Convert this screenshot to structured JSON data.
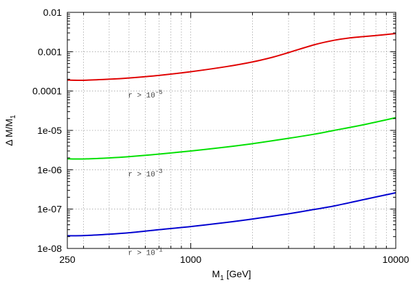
{
  "chart_data": {
    "type": "line",
    "xlabel": {
      "base": "M",
      "sub": "1",
      "rest": " [GeV]"
    },
    "ylabel": {
      "pre": "Δ M/M",
      "sub": "1"
    },
    "x_scale": "log",
    "y_scale": "log",
    "xlim": [
      250,
      10000
    ],
    "ylim": [
      1e-08,
      0.01
    ],
    "x_tick_labels": [
      {
        "value": 250,
        "label": "250"
      },
      {
        "value": 1000,
        "label": "1000"
      },
      {
        "value": 10000,
        "label": "10000"
      }
    ],
    "y_tick_labels": [
      {
        "value": 1e-08,
        "label": "1e-08"
      },
      {
        "value": 1e-07,
        "label": "1e-07"
      },
      {
        "value": 1e-06,
        "label": "1e-06"
      },
      {
        "value": 1e-05,
        "label": "1e-05"
      },
      {
        "value": 0.0001,
        "label": "0.0001"
      },
      {
        "value": 0.001,
        "label": "0.001"
      },
      {
        "value": 0.01,
        "label": "0.01"
      }
    ],
    "grid": true,
    "series": [
      {
        "color": "#e00000",
        "annotation": {
          "text": "r > 10",
          "exp": "-5",
          "x": 600,
          "y": 8e-05
        },
        "x": [
          250,
          300,
          400,
          500,
          700,
          1000,
          1500,
          2000,
          2500,
          3000,
          4000,
          5000,
          6000,
          8000,
          10000
        ],
        "y": [
          0.00019,
          0.000188,
          0.0002,
          0.000215,
          0.00025,
          0.00031,
          0.00042,
          0.00055,
          0.00072,
          0.00095,
          0.0015,
          0.00195,
          0.00225,
          0.00258,
          0.0029
        ]
      },
      {
        "color": "#00e000",
        "annotation": {
          "text": "r > 10",
          "exp": "-3",
          "x": 600,
          "y": 8e-07
        },
        "x": [
          250,
          300,
          400,
          500,
          700,
          1000,
          1500,
          2000,
          3000,
          4000,
          5000,
          7000,
          10000
        ],
        "y": [
          1.9e-06,
          1.88e-06,
          2e-06,
          2.15e-06,
          2.5e-06,
          3e-06,
          3.8e-06,
          4.6e-06,
          6.3e-06,
          8e-06,
          1e-05,
          1.4e-05,
          2.1e-05
        ]
      },
      {
        "color": "#0000d0",
        "annotation": {
          "text": "r > 10",
          "exp": "-1",
          "x": 600,
          "y": 8e-09
        },
        "x": [
          250,
          300,
          400,
          500,
          700,
          1000,
          1500,
          2000,
          3000,
          4000,
          5000,
          7000,
          10000
        ],
        "y": [
          2.1e-08,
          2.12e-08,
          2.3e-08,
          2.5e-08,
          3e-08,
          3.6e-08,
          4.6e-08,
          5.6e-08,
          7.6e-08,
          9.8e-08,
          1.2e-07,
          1.75e-07,
          2.6e-07
        ]
      }
    ]
  }
}
